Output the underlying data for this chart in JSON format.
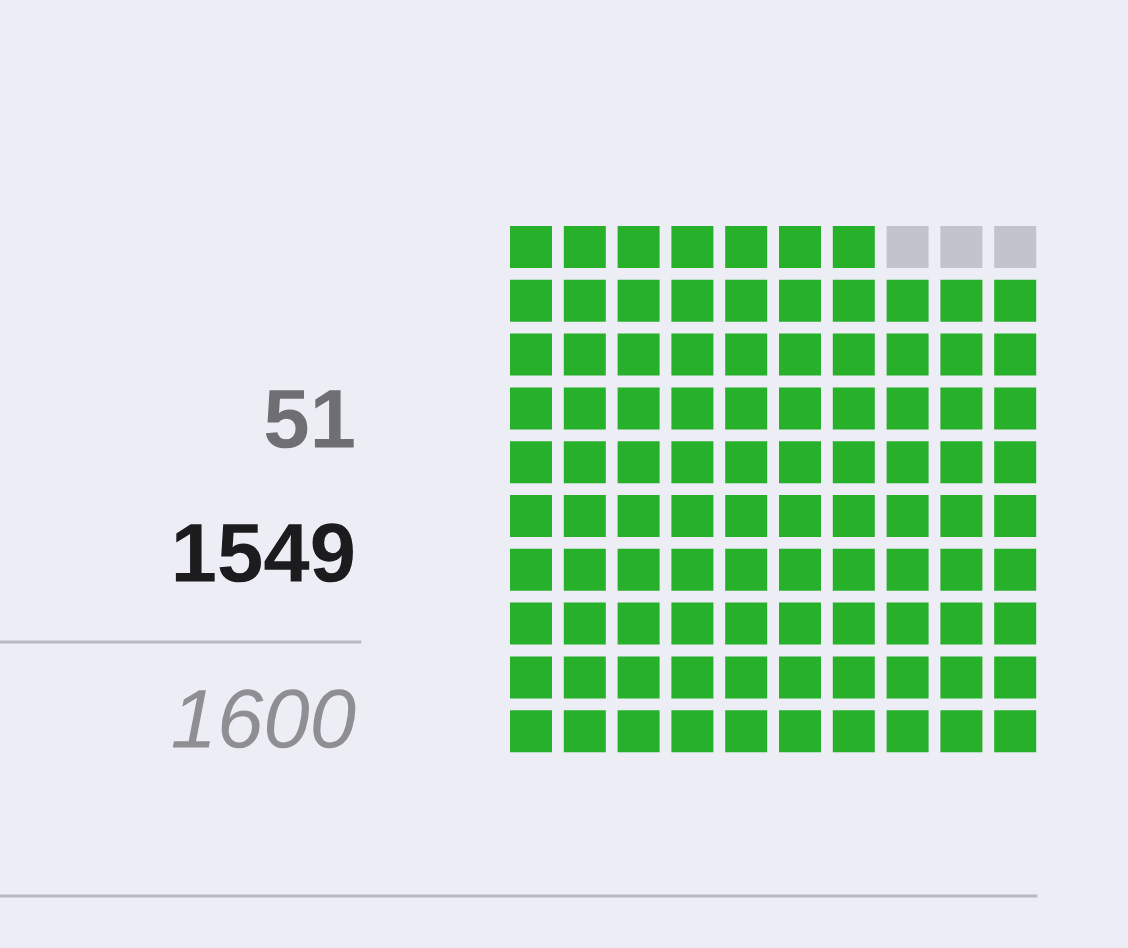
{
  "chart_data": {
    "type": "other",
    "categories": [
      null,
      null
    ],
    "values": [
      51,
      1549
    ],
    "colors": [
      "#c3c3cd",
      "#27b02a"
    ],
    "data_labels": true,
    "totals": [
      "1600"
    ]
  }
}
